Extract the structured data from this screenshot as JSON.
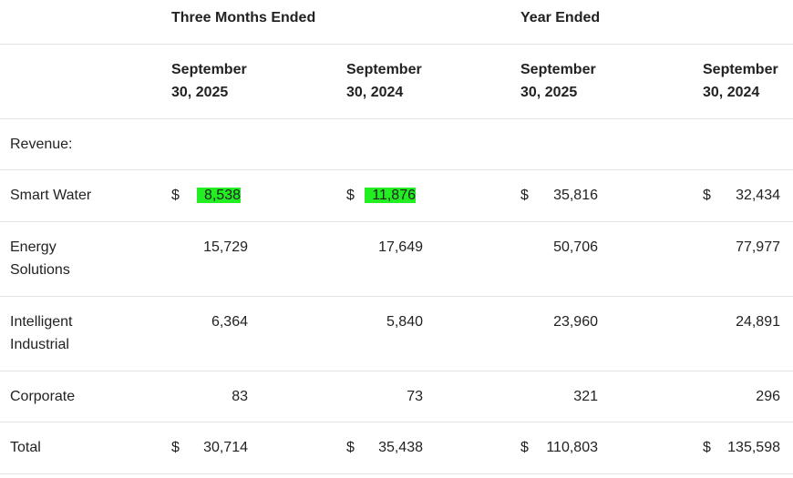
{
  "header": {
    "groups": [
      "Three Months Ended",
      "Year Ended"
    ],
    "columns": [
      "September 30, 2025",
      "September 30, 2024",
      "September 30, 2025",
      "September 30, 2024"
    ]
  },
  "table": {
    "rows": [
      {
        "label": "Revenue:"
      },
      {
        "label": "Smart Water",
        "cells": [
          {
            "currency": "$",
            "value": "8,538",
            "highlight": true
          },
          {
            "currency": "$",
            "value": "11,876",
            "highlight": true
          },
          {
            "currency": "$",
            "value": "35,816"
          },
          {
            "currency": "$",
            "value": "32,434"
          }
        ]
      },
      {
        "label": "Energy Solutions",
        "cells": [
          {
            "value": "15,729"
          },
          {
            "value": "17,649"
          },
          {
            "value": "50,706"
          },
          {
            "value": "77,977"
          }
        ]
      },
      {
        "label": "Intelligent Industrial",
        "cells": [
          {
            "value": "6,364"
          },
          {
            "value": "5,840"
          },
          {
            "value": "23,960"
          },
          {
            "value": "24,891"
          }
        ]
      },
      {
        "label": "Corporate",
        "cells": [
          {
            "value": "83"
          },
          {
            "value": "73"
          },
          {
            "value": "321"
          },
          {
            "value": "296"
          }
        ]
      },
      {
        "label": "Total",
        "cells": [
          {
            "currency": "$",
            "value": "30,714"
          },
          {
            "currency": "$",
            "value": "35,438"
          },
          {
            "currency": "$",
            "value": "110,803"
          },
          {
            "currency": "$",
            "value": "135,598"
          }
        ]
      }
    ]
  }
}
